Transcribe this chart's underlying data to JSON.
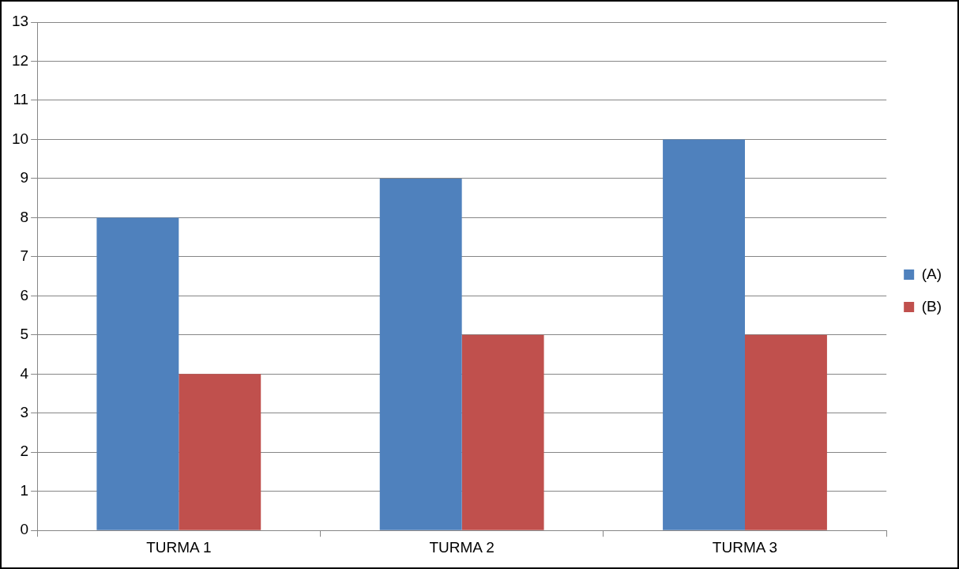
{
  "chart_data": {
    "type": "bar",
    "categories": [
      "TURMA 1",
      "TURMA 2",
      "TURMA 3"
    ],
    "series": [
      {
        "name": "(A)",
        "color": "#4f81bd",
        "values": [
          8,
          9,
          10
        ]
      },
      {
        "name": "(B)",
        "color": "#c0504d",
        "values": [
          4,
          5,
          5
        ]
      }
    ],
    "ylim": [
      0,
      13
    ],
    "yticks": [
      0,
      1,
      2,
      3,
      4,
      5,
      6,
      7,
      8,
      9,
      10,
      11,
      12,
      13
    ],
    "grid": "y",
    "legend": "right"
  }
}
